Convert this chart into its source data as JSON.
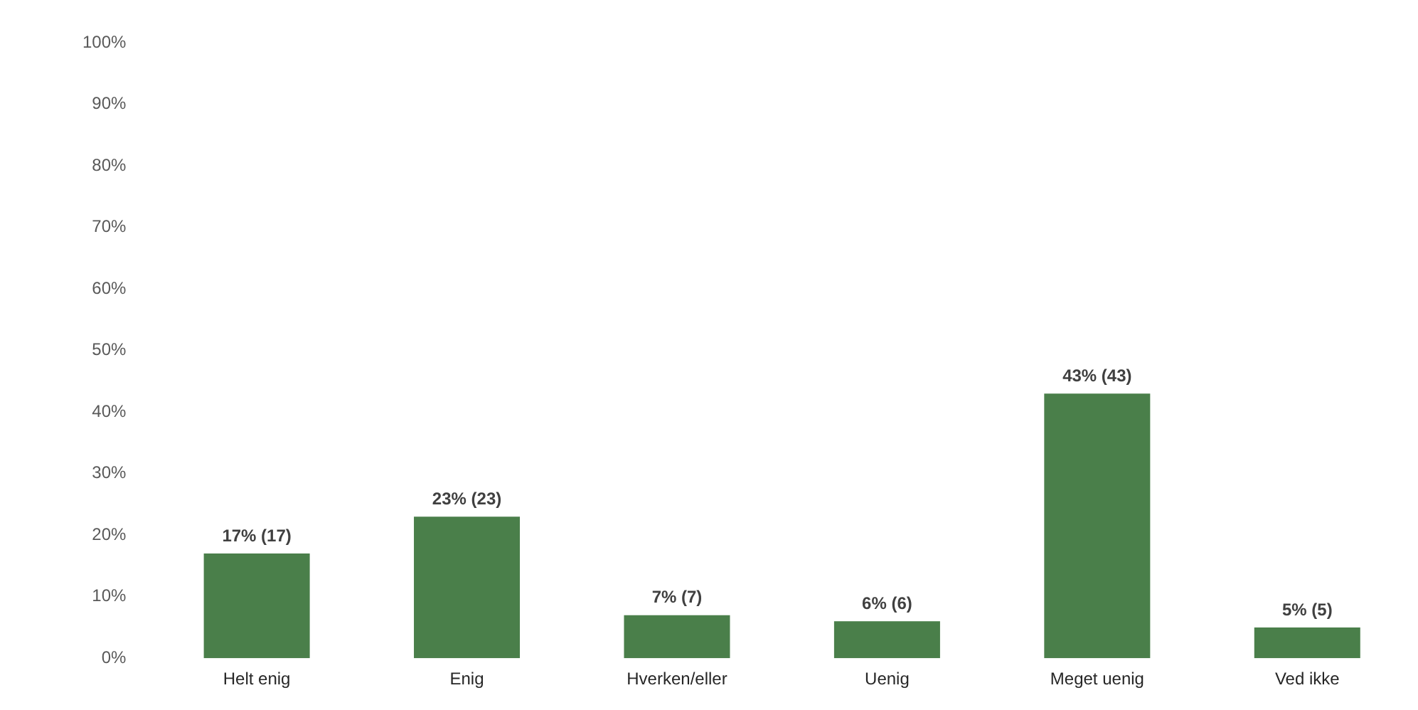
{
  "chart_data": {
    "type": "bar",
    "categories": [
      "Helt enig",
      "Enig",
      "Hverken/eller",
      "Uenig",
      "Meget uenig",
      "Ved ikke"
    ],
    "values": [
      17,
      23,
      7,
      6,
      43,
      5
    ],
    "value_labels": [
      "17% (17)",
      "23% (23)",
      "7% (7)",
      "6% (6)",
      "43% (43)",
      "5% (5)"
    ],
    "color": "#4a7f4a",
    "ylim": [
      0,
      100
    ],
    "yticks": [
      {
        "value": 0,
        "label": "0%"
      },
      {
        "value": 10,
        "label": "10%"
      },
      {
        "value": 20,
        "label": "20%"
      },
      {
        "value": 30,
        "label": "30%"
      },
      {
        "value": 40,
        "label": "40%"
      },
      {
        "value": 50,
        "label": "50%"
      },
      {
        "value": 60,
        "label": "60%"
      },
      {
        "value": 70,
        "label": "70%"
      },
      {
        "value": 80,
        "label": "80%"
      },
      {
        "value": 90,
        "label": "90%"
      },
      {
        "value": 100,
        "label": "100%"
      }
    ],
    "grid": false,
    "legend": false
  }
}
